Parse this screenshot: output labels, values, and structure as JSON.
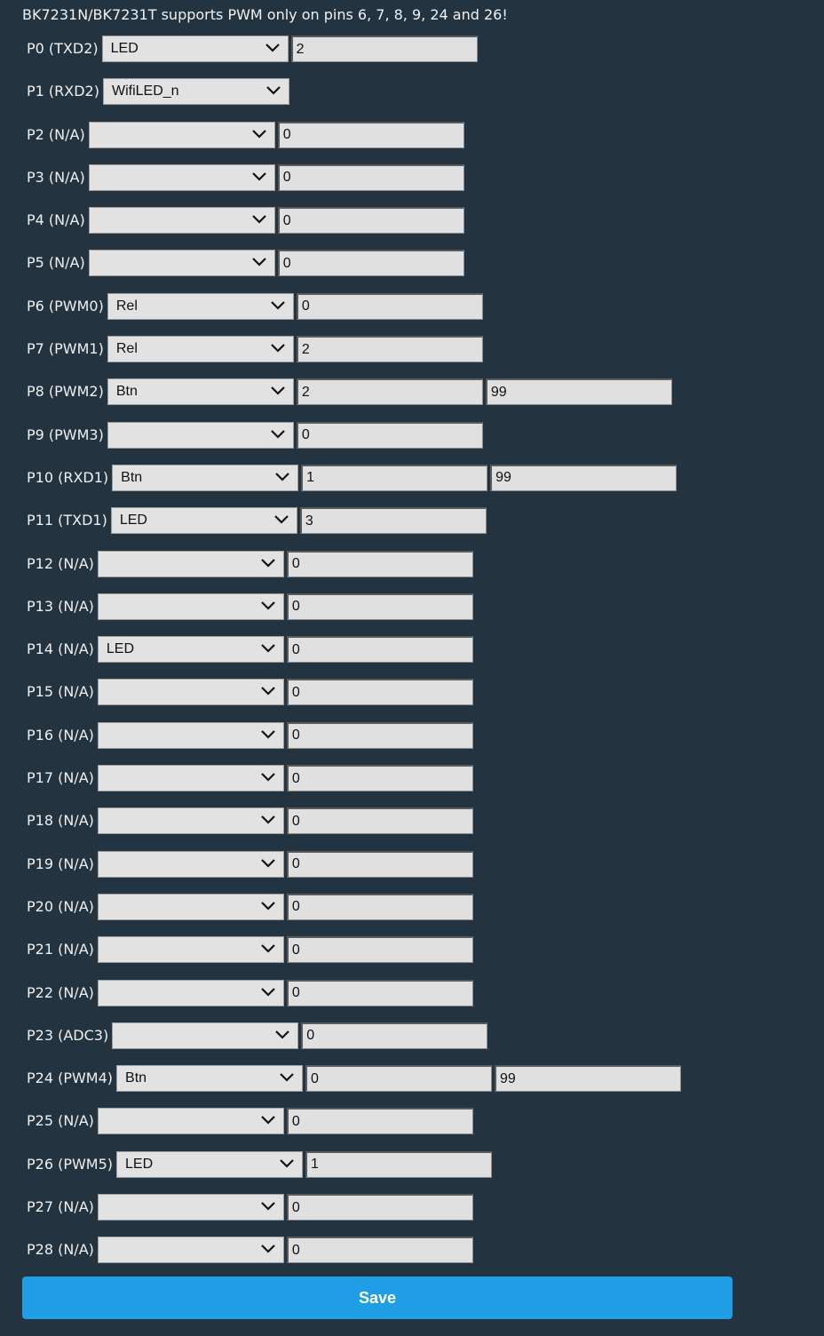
{
  "notice": "BK7231N/BK7231T supports PWM only on pins 6, 7, 8, 9, 24 and 26!",
  "pins": [
    {
      "label": "P0 (TXD2)",
      "role": "LED",
      "values": [
        "2"
      ]
    },
    {
      "label": "P1 (RXD2)",
      "role": "WifiLED_n",
      "values": []
    },
    {
      "label": "P2 (N/A)",
      "role": "",
      "values": [
        "0"
      ]
    },
    {
      "label": "P3 (N/A)",
      "role": "",
      "values": [
        "0"
      ]
    },
    {
      "label": "P4 (N/A)",
      "role": "",
      "values": [
        "0"
      ]
    },
    {
      "label": "P5 (N/A)",
      "role": "",
      "values": [
        "0"
      ]
    },
    {
      "label": "P6 (PWM0)",
      "role": "Rel",
      "values": [
        "0"
      ]
    },
    {
      "label": "P7 (PWM1)",
      "role": "Rel",
      "values": [
        "2"
      ]
    },
    {
      "label": "P8 (PWM2)",
      "role": "Btn",
      "values": [
        "2",
        "99"
      ]
    },
    {
      "label": "P9 (PWM3)",
      "role": "",
      "values": [
        "0"
      ]
    },
    {
      "label": "P10 (RXD1)",
      "role": "Btn",
      "values": [
        "1",
        "99"
      ]
    },
    {
      "label": "P11 (TXD1)",
      "role": "LED",
      "values": [
        "3"
      ]
    },
    {
      "label": "P12 (N/A)",
      "role": "",
      "values": [
        "0"
      ]
    },
    {
      "label": "P13 (N/A)",
      "role": "",
      "values": [
        "0"
      ]
    },
    {
      "label": "P14 (N/A)",
      "role": "LED",
      "values": [
        "0"
      ]
    },
    {
      "label": "P15 (N/A)",
      "role": "",
      "values": [
        "0"
      ]
    },
    {
      "label": "P16 (N/A)",
      "role": "",
      "values": [
        "0"
      ]
    },
    {
      "label": "P17 (N/A)",
      "role": "",
      "values": [
        "0"
      ]
    },
    {
      "label": "P18 (N/A)",
      "role": "",
      "values": [
        "0"
      ]
    },
    {
      "label": "P19 (N/A)",
      "role": "",
      "values": [
        "0"
      ]
    },
    {
      "label": "P20 (N/A)",
      "role": "",
      "values": [
        "0"
      ]
    },
    {
      "label": "P21 (N/A)",
      "role": "",
      "values": [
        "0"
      ]
    },
    {
      "label": "P22 (N/A)",
      "role": "",
      "values": [
        "0"
      ]
    },
    {
      "label": "P23 (ADC3)",
      "role": "",
      "values": [
        "0"
      ]
    },
    {
      "label": "P24 (PWM4)",
      "role": "Btn",
      "values": [
        "0",
        "99"
      ]
    },
    {
      "label": "P25 (N/A)",
      "role": "",
      "values": [
        "0"
      ]
    },
    {
      "label": "P26 (PWM5)",
      "role": "LED",
      "values": [
        "1"
      ]
    },
    {
      "label": "P27 (N/A)",
      "role": "",
      "values": [
        "0"
      ]
    },
    {
      "label": "P28 (N/A)",
      "role": "",
      "values": [
        "0"
      ]
    }
  ],
  "save_label": "Save",
  "icons": {
    "select_arrow": "chevron-down-icon"
  },
  "colors": {
    "background": "#23333f",
    "save_button": "#1f9ee6",
    "field": "#e2e2e2"
  }
}
